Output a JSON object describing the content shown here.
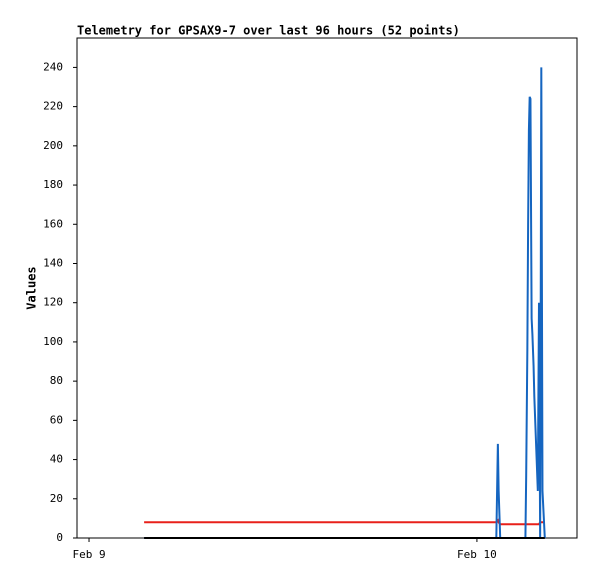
{
  "chart_data": {
    "type": "line",
    "title": "Telemetry for GPSAX9-7 over last 96 hours (52 points)",
    "y_label": "Values",
    "x": [
      0.142,
      0.173,
      0.205,
      0.236,
      0.267,
      0.299,
      0.33,
      0.361,
      0.392,
      0.424,
      0.455,
      0.486,
      0.518,
      0.549,
      0.58,
      0.612,
      0.643,
      0.674,
      0.705,
      0.737,
      0.768,
      0.799,
      0.831,
      0.862,
      0.893,
      0.925,
      0.956,
      0.987,
      1.018,
      1.05,
      1.054,
      1.056,
      1.06,
      1.125,
      1.127,
      1.13,
      1.132,
      1.134,
      1.136,
      1.138,
      1.141,
      1.143,
      1.146,
      1.148,
      1.151,
      1.154,
      1.157,
      1.16,
      1.163,
      1.166,
      1.169,
      1.175
    ],
    "series": [
      {
        "color": "#e8201a",
        "values": [
          8,
          8,
          8,
          8,
          8,
          8,
          8,
          8,
          8,
          8,
          8,
          8,
          8,
          8,
          8,
          8,
          8,
          8,
          8,
          8,
          8,
          8,
          8,
          8,
          8,
          8,
          8,
          8,
          8,
          8,
          9,
          8,
          7,
          7,
          7,
          7,
          7,
          7,
          7,
          7,
          7,
          7,
          7,
          7,
          7,
          7,
          7,
          7,
          8,
          8,
          8,
          8
        ]
      },
      {
        "color": "#1565c0",
        "values": [
          0,
          0,
          0,
          0,
          0,
          0,
          0,
          0,
          0,
          0,
          0,
          0,
          0,
          0,
          0,
          0,
          0,
          0,
          0,
          0,
          0,
          0,
          0,
          0,
          0,
          0,
          0,
          0,
          0,
          0,
          48,
          24,
          0,
          0,
          32,
          96,
          160,
          208,
          225,
          224,
          112,
          104,
          88,
          72,
          56,
          40,
          24,
          120,
          0,
          240,
          24,
          0
        ]
      },
      {
        "color": "#000000",
        "values": [
          0,
          0,
          0,
          0,
          0,
          0,
          0,
          0,
          0,
          0,
          0,
          0,
          0,
          0,
          0,
          0,
          0,
          0,
          0,
          0,
          0,
          0,
          0,
          0,
          0,
          0,
          0,
          0,
          0,
          0,
          0,
          0,
          0,
          0,
          0,
          0,
          0,
          0,
          0,
          0,
          0,
          0,
          0,
          0,
          0,
          0,
          0,
          0,
          0,
          0,
          0,
          0
        ]
      }
    ],
    "xlim": [
      -0.031,
      1.258
    ],
    "xticks": [
      {
        "value": 0,
        "label": "Feb 9"
      },
      {
        "value": 1,
        "label": "Feb 10"
      }
    ],
    "ylim": [
      0,
      255
    ],
    "yticks": [
      0,
      20,
      40,
      60,
      80,
      100,
      120,
      140,
      160,
      180,
      200,
      220,
      240
    ],
    "grid": false
  }
}
